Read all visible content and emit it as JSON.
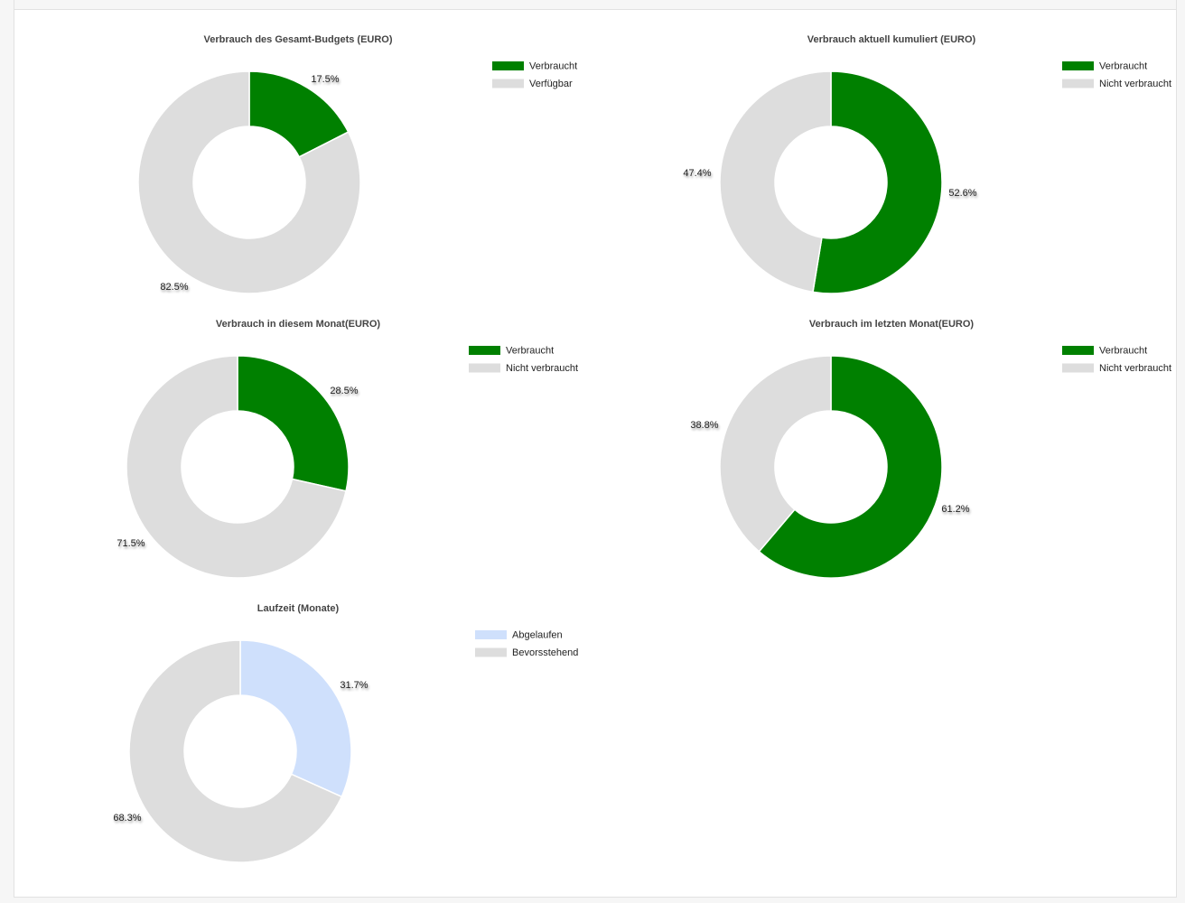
{
  "colors": {
    "consumed": "#008000",
    "remaining": "#dddddd",
    "expired": "#cfe0fc",
    "slice_border": "#ffffff"
  },
  "chart_data": [
    {
      "type": "pie",
      "title": "Verbrauch des Gesamt-Budgets (EURO)",
      "legend_position": "top-right",
      "slices": [
        {
          "label": "Verbraucht",
          "value": 17.5,
          "display": "17.5%",
          "color": "#008000"
        },
        {
          "label": "Verfügbar",
          "value": 82.5,
          "display": "82.5%",
          "color": "#dddddd"
        }
      ]
    },
    {
      "type": "pie",
      "title": "Verbrauch aktuell kumuliert (EURO)",
      "legend_position": "top-right",
      "slices": [
        {
          "label": "Verbraucht",
          "value": 52.6,
          "display": "52.6%",
          "color": "#008000"
        },
        {
          "label": "Nicht verbraucht",
          "value": 47.4,
          "display": "47.4%",
          "color": "#dddddd"
        }
      ]
    },
    {
      "type": "pie",
      "title": "Verbrauch in diesem Monat(EURO)",
      "legend_position": "top-right",
      "slices": [
        {
          "label": "Verbraucht",
          "value": 28.5,
          "display": "28.5%",
          "color": "#008000"
        },
        {
          "label": "Nicht verbraucht",
          "value": 71.5,
          "display": "71.5%",
          "color": "#dddddd"
        }
      ]
    },
    {
      "type": "pie",
      "title": "Verbrauch im letzten Monat(EURO)",
      "legend_position": "top-right",
      "slices": [
        {
          "label": "Verbraucht",
          "value": 61.2,
          "display": "61.2%",
          "color": "#008000"
        },
        {
          "label": "Nicht verbraucht",
          "value": 38.8,
          "display": "38.8%",
          "color": "#dddddd"
        }
      ]
    },
    {
      "type": "pie",
      "title": "Laufzeit (Monate)",
      "legend_position": "top-right",
      "slices": [
        {
          "label": "Abgelaufen",
          "value": 31.7,
          "display": "31.7%",
          "color": "#cfe0fc"
        },
        {
          "label": "Bevorsstehend",
          "value": 68.3,
          "display": "68.3%",
          "color": "#dddddd"
        }
      ]
    }
  ]
}
